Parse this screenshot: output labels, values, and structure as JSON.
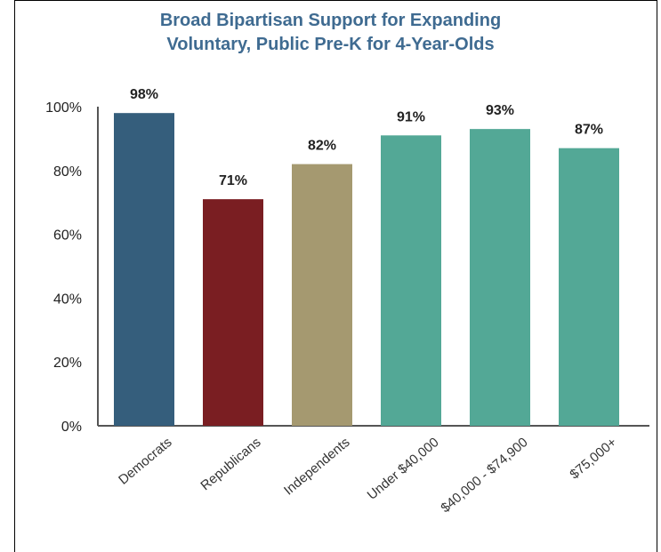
{
  "chart_data": {
    "type": "bar",
    "title_lines": [
      "Broad Bipartisan Support for Expanding",
      "Voluntary, Public Pre-K for 4-Year-Olds"
    ],
    "xlabel": "",
    "ylabel": "",
    "ylim": [
      0,
      100
    ],
    "yticks": [
      "0%",
      "20%",
      "40%",
      "60%",
      "80%",
      "100%"
    ],
    "ytick_values": [
      0,
      20,
      40,
      60,
      80,
      100
    ],
    "grid": false,
    "categories": [
      "Democrats",
      "Republicans",
      "Independents",
      "Under $40,000",
      "$40,000 - $74,900",
      "$75,000+"
    ],
    "values": [
      98,
      71,
      82,
      91,
      93,
      87
    ],
    "value_labels": [
      "98%",
      "71%",
      "82%",
      "91%",
      "93%",
      "87%"
    ],
    "colors": [
      "#355e7c",
      "#7a1e22",
      "#a59970",
      "#53a896",
      "#53a896",
      "#53a896"
    ]
  }
}
